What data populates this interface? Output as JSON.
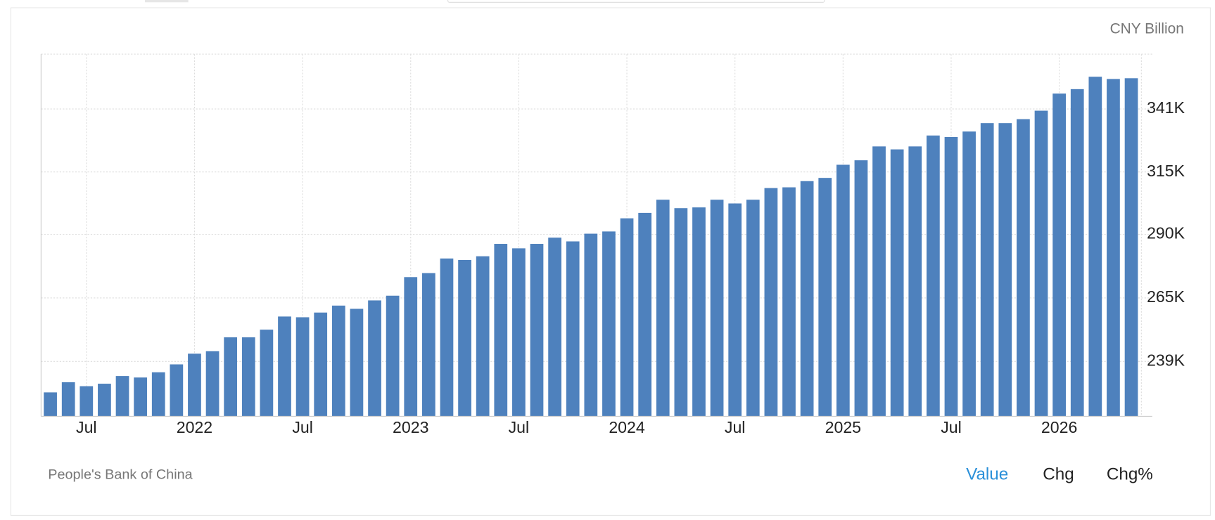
{
  "chart_data": {
    "type": "bar",
    "unit": "CNY Billion",
    "source": "People's Bank of China",
    "tabs": [
      "Value",
      "Chg",
      "Chg%"
    ],
    "color": "#4e81bd",
    "grid": true,
    "categories": [
      null,
      null,
      "Jul",
      null,
      null,
      null,
      null,
      null,
      "2022",
      null,
      null,
      null,
      null,
      null,
      "Jul",
      null,
      null,
      null,
      null,
      null,
      "2023",
      null,
      null,
      null,
      null,
      null,
      "Jul",
      null,
      null,
      null,
      null,
      null,
      "2024",
      null,
      null,
      null,
      null,
      null,
      "Jul",
      null,
      null,
      null,
      null,
      null,
      "2025",
      null,
      null,
      null,
      null,
      null,
      "Jul",
      null,
      null,
      null,
      null,
      null,
      "2026",
      null,
      null,
      null,
      null
    ],
    "values": [
      226500,
      230600,
      229000,
      230000,
      233100,
      232500,
      234600,
      237800,
      242100,
      243100,
      248700,
      248700,
      251800,
      257100,
      256800,
      258700,
      261500,
      260200,
      263600,
      265500,
      273000,
      274600,
      280500,
      279900,
      281400,
      286400,
      284600,
      286400,
      288900,
      287400,
      290500,
      291400,
      296700,
      298900,
      304200,
      300800,
      301100,
      304200,
      302700,
      304200,
      308900,
      309200,
      311700,
      313000,
      318300,
      320100,
      325700,
      324500,
      325700,
      330100,
      329500,
      331700,
      335100,
      335100,
      336700,
      340100,
      347000,
      348800,
      353800,
      352900,
      353200
    ],
    "ylim": [
      216850,
      362900
    ],
    "yticks": [
      {
        "value": 239000,
        "label": "239K"
      },
      {
        "value": 264600,
        "label": "265K"
      },
      {
        "value": 290200,
        "label": "290K"
      },
      {
        "value": 315400,
        "label": "315K"
      },
      {
        "value": 340800,
        "label": "341K"
      }
    ]
  }
}
